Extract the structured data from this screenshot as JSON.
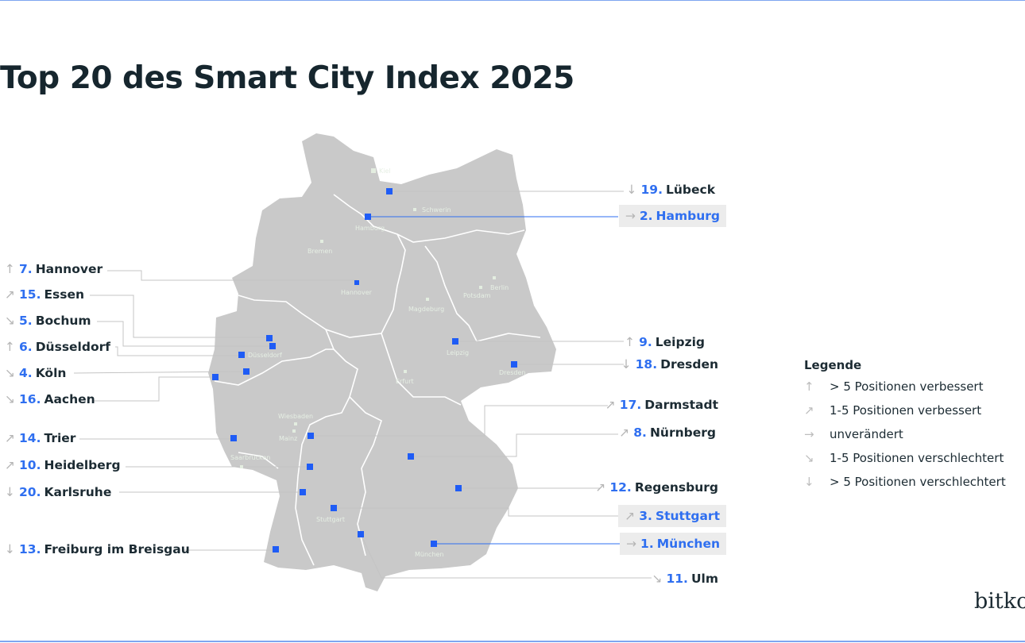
{
  "title": "Top 20 des Smart City Index 2025",
  "colors": {
    "accent": "#2f6ff0",
    "map_fill": "#c9c9c9",
    "highlight_bg": "#ececec",
    "text": "#1c2b33"
  },
  "trend_icons": {
    "up": "↑",
    "up_right": "↗",
    "right": "→",
    "down_right": "↘",
    "down": "↓"
  },
  "cities": [
    {
      "rank": "19.",
      "name": "Lübeck",
      "trend": "↓"
    },
    {
      "rank": "2.",
      "name": "Hamburg",
      "trend": "→"
    },
    {
      "rank": "7.",
      "name": "Hannover",
      "trend": "↑"
    },
    {
      "rank": "15.",
      "name": "Essen",
      "trend": "↗"
    },
    {
      "rank": "5.",
      "name": "Bochum",
      "trend": "↘"
    },
    {
      "rank": "6.",
      "name": "Düsseldorf",
      "trend": "↑"
    },
    {
      "rank": "4.",
      "name": "Köln",
      "trend": "↘"
    },
    {
      "rank": "16.",
      "name": "Aachen",
      "trend": "↘"
    },
    {
      "rank": "9.",
      "name": "Leipzig",
      "trend": "↑"
    },
    {
      "rank": "18.",
      "name": "Dresden",
      "trend": "↓"
    },
    {
      "rank": "17.",
      "name": "Darmstadt",
      "trend": "↗"
    },
    {
      "rank": "8.",
      "name": "Nürnberg",
      "trend": "↗"
    },
    {
      "rank": "14.",
      "name": "Trier",
      "trend": "↗"
    },
    {
      "rank": "10.",
      "name": "Heidelberg",
      "trend": "↗"
    },
    {
      "rank": "20.",
      "name": "Karlsruhe",
      "trend": "↓"
    },
    {
      "rank": "12.",
      "name": "Regensburg",
      "trend": "↗"
    },
    {
      "rank": "3.",
      "name": "Stuttgart",
      "trend": "↗"
    },
    {
      "rank": "13.",
      "name": "Freiburg im Breisgau",
      "trend": "↓"
    },
    {
      "rank": "1.",
      "name": "München",
      "trend": "→"
    },
    {
      "rank": "11.",
      "name": "Ulm",
      "trend": "↘"
    }
  ],
  "capitals": [
    "Kiel",
    "Schwerin",
    "Hamburg",
    "Bremen",
    "Hannover",
    "Berlin",
    "Potsdam",
    "Magdeburg",
    "Düsseldorf",
    "Leipzig",
    "Dresden",
    "Erfurt",
    "Wiesbaden",
    "Mainz",
    "Saarbrücken",
    "Stuttgart",
    "München"
  ],
  "legend": {
    "title": "Legende",
    "items": [
      {
        "icon": "↑",
        "label": "> 5 Positionen verbessert"
      },
      {
        "icon": "↗",
        "label": "1-5 Positionen verbessert"
      },
      {
        "icon": "→",
        "label": "unverändert"
      },
      {
        "icon": "↘",
        "label": "1-5 Positionen verschlechtert"
      },
      {
        "icon": "↓",
        "label": "> 5 Positionen verschlechtert"
      }
    ]
  },
  "logo": "bitkom"
}
